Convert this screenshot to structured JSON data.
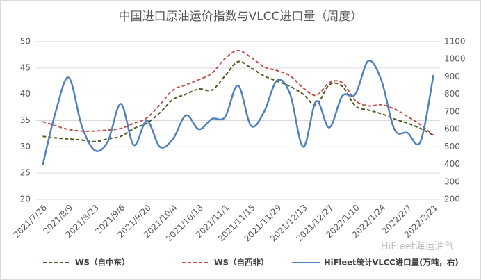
{
  "chart_data": {
    "type": "line",
    "title": "中国进口原油运价指数与VLCC进口量（周度）",
    "categories": [
      "2021/7/26",
      null,
      "2021/8/9",
      null,
      "2021/8/23",
      null,
      "2021/9/6",
      null,
      "2021/9/20",
      null,
      "2021/10/4",
      null,
      "2021/10/18",
      null,
      "2021/11/1",
      null,
      "2021/11/15",
      null,
      "2021/11/29",
      null,
      "2021/12/13",
      null,
      "2021/12/27",
      null,
      "2022/1/10",
      null,
      "2022/1/24",
      null,
      "2022/2/7",
      null,
      "2022/2/21"
    ],
    "series": [
      {
        "name": "WS（自中东）",
        "color": "#4e5a1e",
        "dash": true,
        "values": [
          32,
          31.7,
          31.5,
          31.3,
          31,
          31.5,
          32,
          33.5,
          34.5,
          36.5,
          39,
          40,
          41,
          40.8,
          43.5,
          46.2,
          45,
          43.5,
          42.5,
          41.5,
          40,
          38,
          41.8,
          41.5,
          37.8,
          37,
          36.3,
          35.3,
          34.5,
          33.5,
          32.2
        ]
      },
      {
        "name": "WS（自西非）",
        "color": "#c0504d",
        "dash": true,
        "values": [
          34.8,
          34,
          33.3,
          33,
          33,
          33.2,
          33.5,
          34.5,
          35.5,
          38,
          40.8,
          41.8,
          42.8,
          44,
          46.8,
          48.3,
          47,
          45.2,
          44.5,
          43.5,
          41.2,
          39.8,
          42.2,
          42.2,
          38.8,
          37.8,
          38,
          37.2,
          35.8,
          34.2,
          32.2
        ]
      },
      {
        "name": "HiFleet统计VLCC进口量(万吨，右)",
        "color": "#4f81bd",
        "dash": false,
        "axis": "y2",
        "values": [
          395,
          700,
          895,
          620,
          480,
          530,
          745,
          510,
          650,
          500,
          545,
          680,
          600,
          660,
          670,
          850,
          620,
          700,
          880,
          800,
          500,
          760,
          610,
          790,
          800,
          990,
          880,
          600,
          580,
          530,
          910
        ]
      }
    ],
    "ylim": [
      20,
      50
    ],
    "yticks": [
      20,
      25,
      30,
      35,
      40,
      45,
      50
    ],
    "y2lim": [
      200,
      1100
    ],
    "y2ticks": [
      200,
      300,
      400,
      500,
      600,
      700,
      800,
      900,
      1000,
      1100
    ],
    "grid": true,
    "legend": "bottom",
    "watermark": "HiFleet海运油气"
  }
}
